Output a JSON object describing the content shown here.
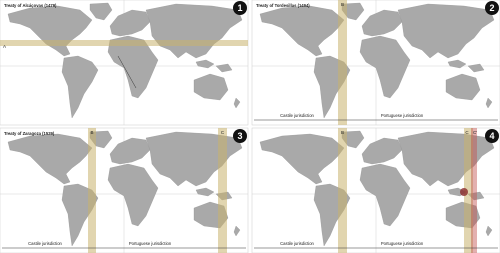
{
  "panels": [
    {
      "title": "Treaty of Alcáçovas (1479)",
      "number": "1",
      "lines": [
        "A"
      ]
    },
    {
      "title": "Treaty of Tordesillas (1494)",
      "number": "2",
      "lines": [
        "B"
      ],
      "jurisdictions": [
        "Castile jurisdiction",
        "Portuguese jurisdiction"
      ]
    },
    {
      "title": "Treaty of Zaragoza (1529)",
      "number": "3",
      "lines": [
        "B",
        "C"
      ],
      "jurisdictions": [
        "Castile jurisdiction",
        "Portuguese jurisdiction"
      ]
    },
    {
      "number": "4",
      "lines": [
        "B",
        "C",
        "C'"
      ],
      "jurisdictions": [
        "Castile jurisdiction",
        "Portuguese jurisdiction"
      ]
    }
  ]
}
